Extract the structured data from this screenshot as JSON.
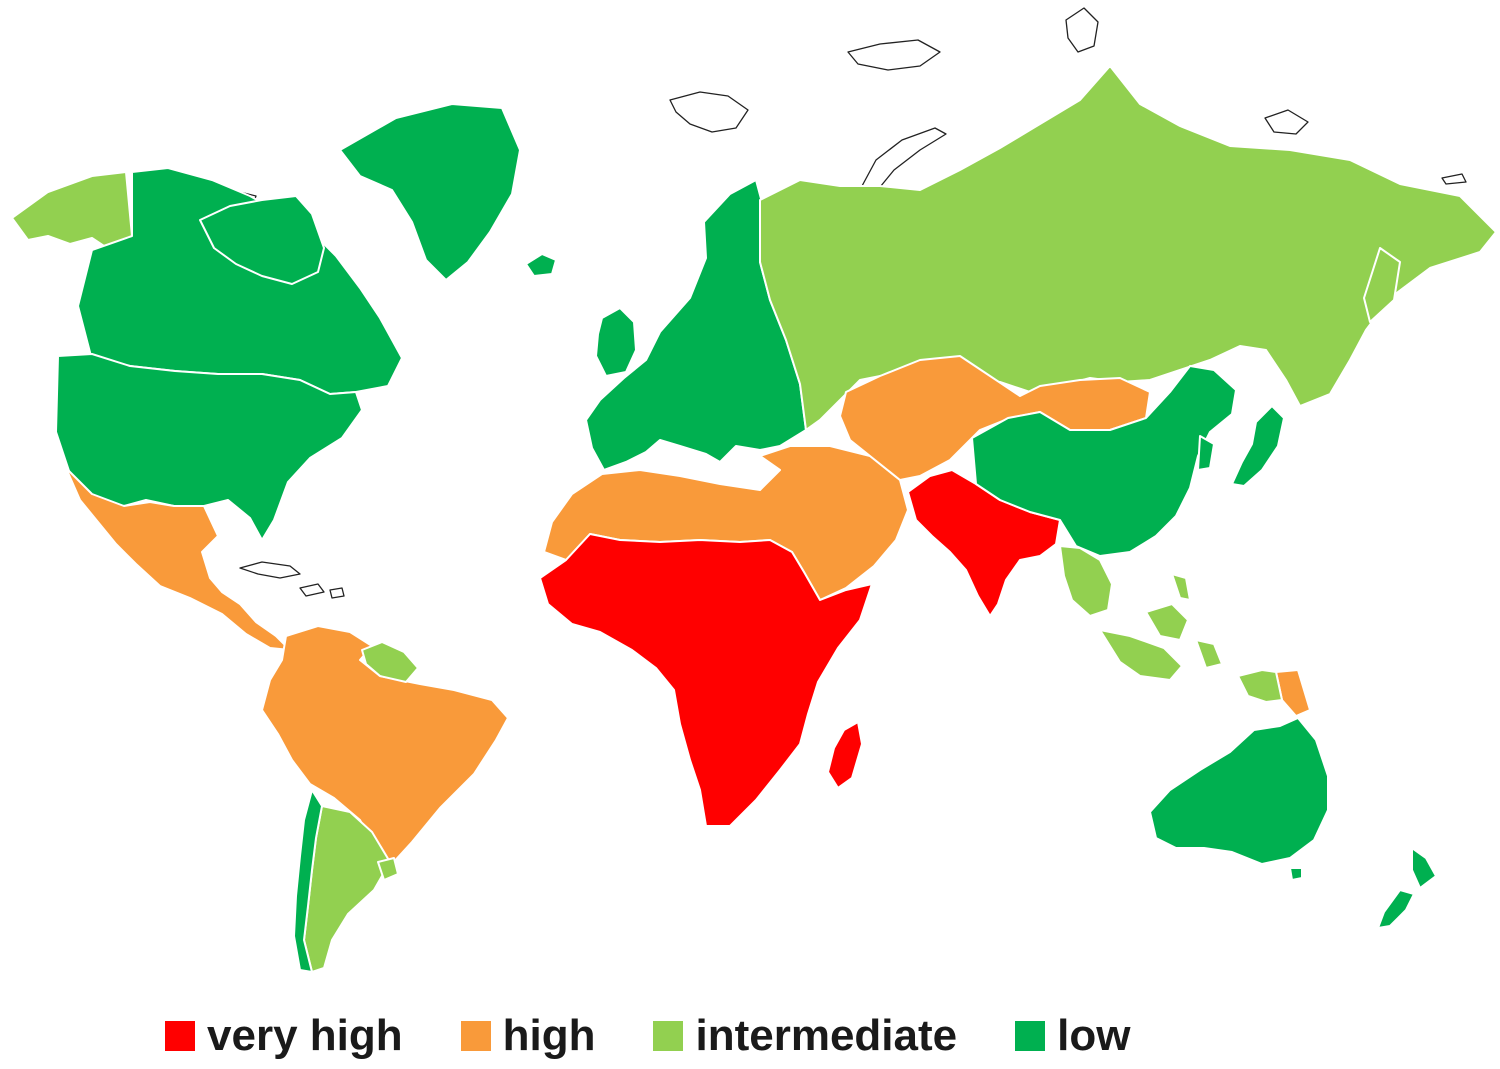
{
  "colors": {
    "very_high": "#ff0000",
    "high": "#f99a3a",
    "intermediate": "#92d050",
    "low": "#00b050"
  },
  "legend": [
    {
      "key": "very_high",
      "label": "very high"
    },
    {
      "key": "high",
      "label": "high"
    },
    {
      "key": "intermediate",
      "label": "intermediate"
    },
    {
      "key": "low",
      "label": "low"
    }
  ],
  "regions": [
    {
      "name": "alaska",
      "category": "intermediate"
    },
    {
      "name": "canada",
      "category": "low"
    },
    {
      "name": "united-states",
      "category": "low"
    },
    {
      "name": "greenland",
      "category": "low"
    },
    {
      "name": "iceland",
      "category": "low"
    },
    {
      "name": "mexico-central-america",
      "category": "high"
    },
    {
      "name": "south-america-north",
      "category": "high"
    },
    {
      "name": "guianas",
      "category": "intermediate"
    },
    {
      "name": "chile",
      "category": "low"
    },
    {
      "name": "argentina",
      "category": "intermediate"
    },
    {
      "name": "uruguay",
      "category": "intermediate"
    },
    {
      "name": "europe",
      "category": "low"
    },
    {
      "name": "north-africa-middle-east",
      "category": "high"
    },
    {
      "name": "sub-saharan-africa",
      "category": "very_high"
    },
    {
      "name": "madagascar",
      "category": "very_high"
    },
    {
      "name": "russia",
      "category": "intermediate"
    },
    {
      "name": "central-asia-mongolia",
      "category": "high"
    },
    {
      "name": "south-asia",
      "category": "very_high"
    },
    {
      "name": "china",
      "category": "low"
    },
    {
      "name": "japan-korea",
      "category": "low"
    },
    {
      "name": "southeast-asia",
      "category": "intermediate"
    },
    {
      "name": "papua-new-guinea",
      "category": "high"
    },
    {
      "name": "australia",
      "category": "low"
    },
    {
      "name": "new-zealand",
      "category": "low"
    }
  ]
}
